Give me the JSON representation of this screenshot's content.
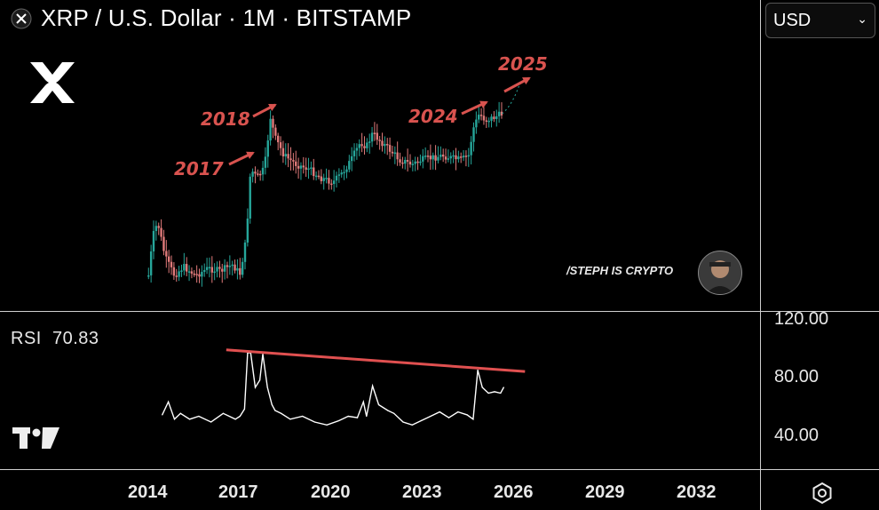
{
  "header": {
    "title": "XRP / U.S. Dollar · 1M · BITSTAMP",
    "currency": "USD"
  },
  "watermark": "/STEPH IS CRYPTO",
  "rsi": {
    "label": "RSI",
    "value": "70.83"
  },
  "y_axis_ticks": [
    "120.00",
    "80.00",
    "40.00"
  ],
  "x_axis_ticks": [
    "2014",
    "2017",
    "2020",
    "2023",
    "2026",
    "2029",
    "2032"
  ],
  "colors": {
    "background": "#000000",
    "up": "#26a69a",
    "down": "#e07a7a",
    "annotation": "#d9534f",
    "rsi_line": "#ffffff",
    "trendline": "#e05050"
  },
  "chart_data": [
    {
      "type": "line",
      "title": "XRP / U.S. Dollar · 1M · BITSTAMP",
      "xlabel": "",
      "ylabel": "",
      "annotations": [
        "2017",
        "2018",
        "2024",
        "2025"
      ],
      "grid": false
    },
    {
      "type": "line",
      "title": "RSI",
      "x": [
        2014.4,
        2014.6,
        2014.8,
        2015.0,
        2015.3,
        2015.6,
        2016.0,
        2016.4,
        2016.8,
        2016.95,
        2017.1,
        2017.2,
        2017.3,
        2017.45,
        2017.6,
        2017.7,
        2017.85,
        2018.0,
        2018.1,
        2018.3,
        2018.6,
        2019.0,
        2019.4,
        2019.8,
        2020.2,
        2020.5,
        2020.8,
        2021.0,
        2021.1,
        2021.3,
        2021.5,
        2021.8,
        2022.0,
        2022.3,
        2022.6,
        2022.9,
        2023.2,
        2023.5,
        2023.8,
        2024.1,
        2024.4,
        2024.6,
        2024.75,
        2024.9,
        2025.1,
        2025.3,
        2025.5,
        2025.6
      ],
      "values": [
        53,
        62,
        50,
        54,
        50,
        52,
        48,
        54,
        50,
        52,
        57,
        96,
        96,
        72,
        77,
        95,
        72,
        60,
        56,
        54,
        50,
        52,
        48,
        46,
        49,
        52,
        51,
        62,
        52,
        73,
        60,
        56,
        54,
        48,
        46,
        49,
        52,
        55,
        51,
        55,
        53,
        50,
        84,
        72,
        68,
        69,
        68,
        72
      ],
      "ylim": [
        25,
        130
      ],
      "trendline": {
        "x": [
          2016.5,
          2026.3
        ],
        "y": [
          98,
          83
        ]
      }
    }
  ]
}
